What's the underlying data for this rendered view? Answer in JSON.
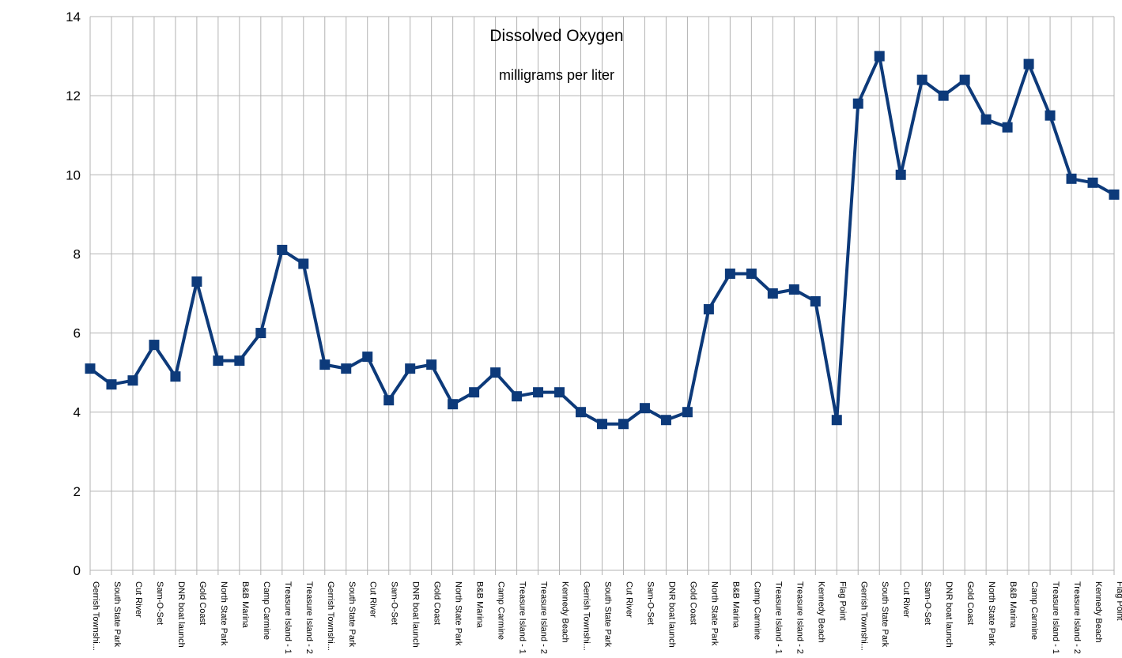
{
  "chart_data": {
    "type": "line",
    "title": "Dissolved Oxygen",
    "subtitle": "milligrams per liter",
    "xlabel": "",
    "ylabel": "",
    "ylim": [
      0,
      14
    ],
    "yticks": [
      "0",
      "2",
      "4",
      "6",
      "8",
      "10",
      "12",
      "14"
    ],
    "grid": true,
    "marker": "square",
    "line_color": "#0d3a7a",
    "categories": [
      "Gerrish Townshi...",
      "South State Park",
      "Cut River",
      "Sam-O-Set",
      "DNR boat launch",
      "Gold Coast",
      "North State Park",
      "B&B Marina",
      "Camp Carmine",
      "Treasure Island - 1",
      "Treasure Island - 2",
      "Gerrish Townshi...",
      "South State Park",
      "Cut River",
      "Sam-O-Set",
      "DNR boat launch",
      "Gold Coast",
      "North State Park",
      "B&B Marina",
      "Camp Carmine",
      "Treasure Island - 1",
      "Treasure Island - 2",
      "Kennedy Beach",
      "Gerrish Townshi...",
      "South State Park",
      "Cut River",
      "Sam-O-Set",
      "DNR boat launch",
      "Gold Coast",
      "North State Park",
      "B&B Marina",
      "Camp Carmine",
      "Treasure Island - 1",
      "Treasure Island - 2",
      "Kennedy Beach",
      "Flag Point",
      "Gerrish Townshi...",
      "South State Park",
      "Cut River",
      "Sam-O-Set",
      "DNR boat launch",
      "Gold Coast",
      "North State Park",
      "B&B Marina",
      "Camp Carmine",
      "Treasure Island - 1",
      "Treasure Island - 2",
      "Kennedy Beach",
      "Flag Point"
    ],
    "series": [
      {
        "values": [
          5.1,
          4.7,
          4.8,
          5.7,
          4.9,
          7.3,
          5.3,
          5.3,
          6.0,
          8.1,
          7.75,
          5.2,
          5.1,
          5.4,
          4.3,
          5.1,
          5.2,
          4.2,
          4.5,
          5.0,
          4.4,
          4.5,
          4.5,
          4.0,
          3.7,
          3.7,
          4.1,
          3.8,
          4.0,
          6.6,
          7.5,
          7.5,
          7.0,
          7.1,
          6.8,
          3.8,
          11.8,
          13.0,
          10.0,
          12.4,
          12.0,
          12.4,
          11.4,
          11.2,
          12.8,
          11.5,
          9.9,
          9.8,
          9.5
        ]
      }
    ]
  }
}
